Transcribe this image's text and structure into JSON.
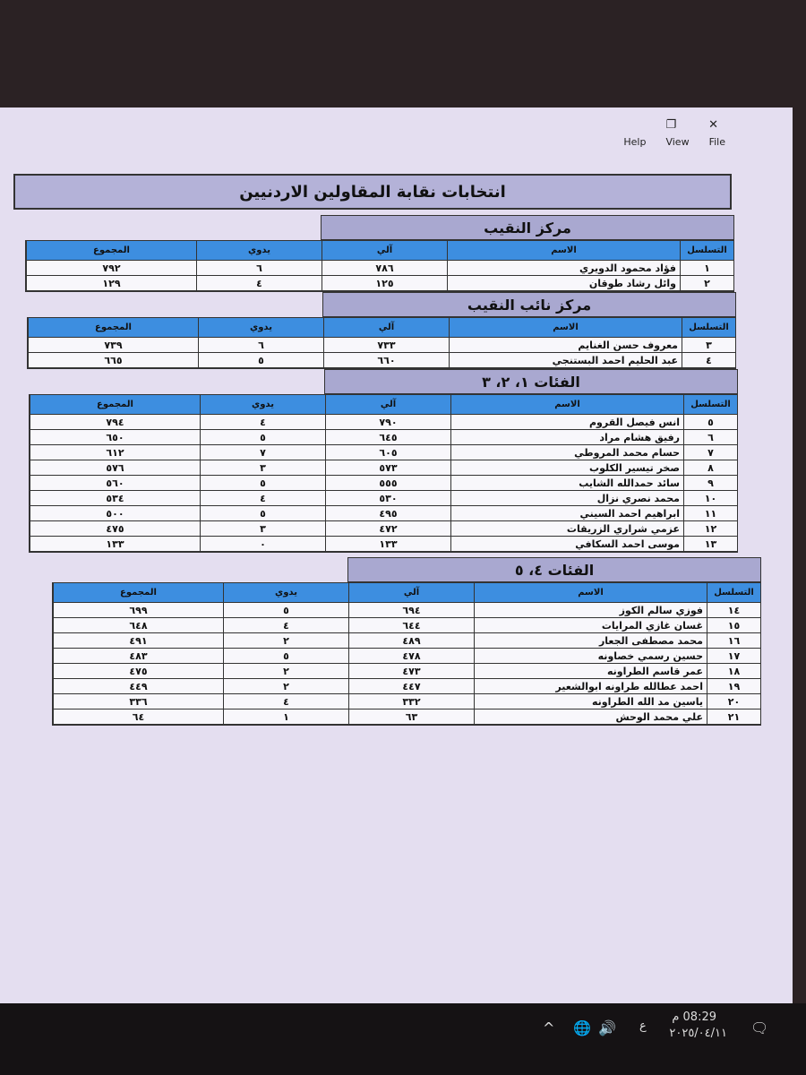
{
  "window": {
    "menu": [
      "File",
      "View",
      "Help"
    ],
    "title": "انتخابات نقابة المقاولين الاردنيين"
  },
  "columns": {
    "seq": "التسلسل",
    "name": "الاسم",
    "electronic": "آلي",
    "manual": "يدوي",
    "total": "المجموع"
  },
  "sections": [
    {
      "heading": "مركز النقيب",
      "rows": [
        {
          "seq": "١",
          "name": "فؤاد محمود الدويري",
          "electronic": "٧٨٦",
          "manual": "٦",
          "total": "٧٩٢"
        },
        {
          "seq": "٢",
          "name": "وائل رشاد طوقان",
          "electronic": "١٢٥",
          "manual": "٤",
          "total": "١٢٩"
        }
      ]
    },
    {
      "heading": "مركز نائب النقيب",
      "rows": [
        {
          "seq": "٣",
          "name": "معروف حسن الغنايم",
          "electronic": "٧٣٣",
          "manual": "٦",
          "total": "٧٣٩"
        },
        {
          "seq": "٤",
          "name": "عبد الحليم احمد البستنجي",
          "electronic": "٦٦٠",
          "manual": "٥",
          "total": "٦٦٥"
        }
      ]
    },
    {
      "heading": "الفئات ١، ٢، ٣",
      "rows": [
        {
          "seq": "٥",
          "name": "انس فيصل القروم",
          "electronic": "٧٩٠",
          "manual": "٤",
          "total": "٧٩٤"
        },
        {
          "seq": "٦",
          "name": "رفيق هشام مراد",
          "electronic": "٦٤٥",
          "manual": "٥",
          "total": "٦٥٠"
        },
        {
          "seq": "٧",
          "name": "حسام محمد المروطي",
          "electronic": "٦٠٥",
          "manual": "٧",
          "total": "٦١٢"
        },
        {
          "seq": "٨",
          "name": "صخر تيسير الكلوب",
          "electronic": "٥٧٣",
          "manual": "٣",
          "total": "٥٧٦"
        },
        {
          "seq": "٩",
          "name": "سائد حمدالله الشايب",
          "electronic": "٥٥٥",
          "manual": "٥",
          "total": "٥٦٠"
        },
        {
          "seq": "١٠",
          "name": "محمد نصري نزال",
          "electronic": "٥٣٠",
          "manual": "٤",
          "total": "٥٣٤"
        },
        {
          "seq": "١١",
          "name": "ابراهيم احمد السيني",
          "electronic": "٤٩٥",
          "manual": "٥",
          "total": "٥٠٠"
        },
        {
          "seq": "١٢",
          "name": "عزمي شراري الزريقات",
          "electronic": "٤٧٢",
          "manual": "٣",
          "total": "٤٧٥"
        },
        {
          "seq": "١٣",
          "name": "موسى احمد السكافي",
          "electronic": "١٣٣",
          "manual": "٠",
          "total": "١٣٣"
        }
      ]
    },
    {
      "heading": "الفئات ٤، ٥",
      "rows": [
        {
          "seq": "١٤",
          "name": "فوزي سالم الكوز",
          "electronic": "٦٩٤",
          "manual": "٥",
          "total": "٦٩٩"
        },
        {
          "seq": "١٥",
          "name": "غسان غازي المرايات",
          "electronic": "٦٤٤",
          "manual": "٤",
          "total": "٦٤٨"
        },
        {
          "seq": "١٦",
          "name": "محمد مصطفى الجعار",
          "electronic": "٤٨٩",
          "manual": "٢",
          "total": "٤٩١"
        },
        {
          "seq": "١٧",
          "name": "حسين رسمي خصاونه",
          "electronic": "٤٧٨",
          "manual": "٥",
          "total": "٤٨٣"
        },
        {
          "seq": "١٨",
          "name": "عمر قاسم الطراونه",
          "electronic": "٤٧٣",
          "manual": "٢",
          "total": "٤٧٥"
        },
        {
          "seq": "١٩",
          "name": "احمد عطالله طراونه ابوالشعير",
          "electronic": "٤٤٧",
          "manual": "٢",
          "total": "٤٤٩"
        },
        {
          "seq": "٢٠",
          "name": "ياسين مد الله الطراونه",
          "electronic": "٣٣٢",
          "manual": "٤",
          "total": "٣٣٦"
        },
        {
          "seq": "٢١",
          "name": "علي محمد الوحش",
          "electronic": "٦٣",
          "manual": "١",
          "total": "٦٤"
        }
      ]
    }
  ],
  "taskbar": {
    "time": "08:29 م",
    "date": "٢٠٢٥/٠٤/١١",
    "language": "ع"
  }
}
